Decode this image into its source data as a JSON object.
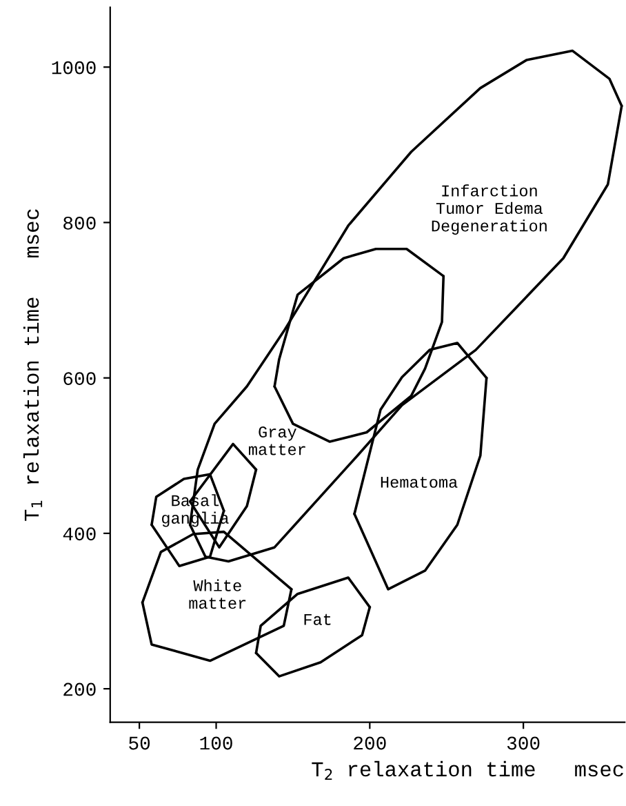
{
  "chart_data": {
    "type": "line",
    "xlabel": "T$_{2}$ relaxation time   msec",
    "ylabel": "T$_{1}$ relaxation time   msec",
    "xlim": [
      31,
      366
    ],
    "ylim": [
      157,
      1077
    ],
    "xticks": [
      50,
      100,
      200,
      300
    ],
    "yticks": [
      200,
      400,
      600,
      800,
      1000
    ],
    "series": [
      {
        "name": "Infarction\nTumor Edema\nDegeneration",
        "color": "#000000",
        "x": [
          83,
          88,
          99,
          120,
          144,
          186,
          227,
          272,
          302,
          332,
          356,
          364
        ],
        "values": [
          411,
          482,
          541,
          589,
          660,
          796,
          891,
          973,
          1009,
          1021,
          985,
          950
        ]
      },
      {
        "color": "#000000",
        "x": [
          83,
          93,
          108,
          138,
          192,
          221,
          269,
          326,
          355,
          364
        ],
        "values": [
          411,
          370,
          364,
          382,
          500,
          565,
          636,
          754,
          849,
          950
        ]
      },
      {
        "color": "#000000",
        "x": [
          138,
          141,
          153,
          183,
          204,
          224,
          248
        ],
        "values": [
          589,
          624,
          707,
          754,
          766,
          766,
          731
        ]
      },
      {
        "color": "#000000",
        "x": [
          138,
          150,
          174,
          198,
          227,
          236,
          247,
          248
        ],
        "values": [
          589,
          541,
          518,
          530,
          577,
          612,
          672,
          731
        ]
      },
      {
        "name": "Hematoma",
        "color": "#000000",
        "x": [
          190,
          207,
          221,
          239,
          257,
          276
        ],
        "values": [
          425,
          559,
          601,
          636,
          645,
          600
        ]
      },
      {
        "color": "#000000",
        "x": [
          190,
          212,
          236,
          257,
          272,
          276
        ],
        "values": [
          425,
          328,
          352,
          411,
          500,
          600
        ]
      },
      {
        "name": "Gray\nmatter",
        "color": "#000000",
        "x": [
          83,
          111,
          126
        ],
        "values": [
          441,
          515,
          482
        ]
      },
      {
        "color": "#000000",
        "x": [
          83,
          102,
          120,
          126
        ],
        "values": [
          441,
          382,
          435,
          482
        ]
      },
      {
        "name": "Basal\nganglia",
        "color": "#000000",
        "x": [
          58,
          61,
          79,
          96,
          105
        ],
        "values": [
          411,
          447,
          470,
          476,
          429
        ]
      },
      {
        "color": "#000000",
        "x": [
          58,
          76,
          96,
          105
        ],
        "values": [
          411,
          358,
          370,
          429
        ]
      },
      {
        "name": "White\nmatter",
        "color": "#000000",
        "x": [
          52,
          64,
          85,
          105,
          149
        ],
        "values": [
          311,
          376,
          399,
          402,
          328
        ]
      },
      {
        "color": "#000000",
        "x": [
          52,
          58,
          96,
          144,
          149
        ],
        "values": [
          311,
          257,
          236,
          281,
          328
        ]
      },
      {
        "name": "Fat",
        "color": "#000000",
        "x": [
          126,
          129,
          153,
          186,
          200
        ],
        "values": [
          246,
          281,
          322,
          343,
          305
        ]
      },
      {
        "color": "#000000",
        "x": [
          126,
          141,
          168,
          195,
          200
        ],
        "values": [
          246,
          216,
          234,
          269,
          305
        ]
      }
    ]
  }
}
